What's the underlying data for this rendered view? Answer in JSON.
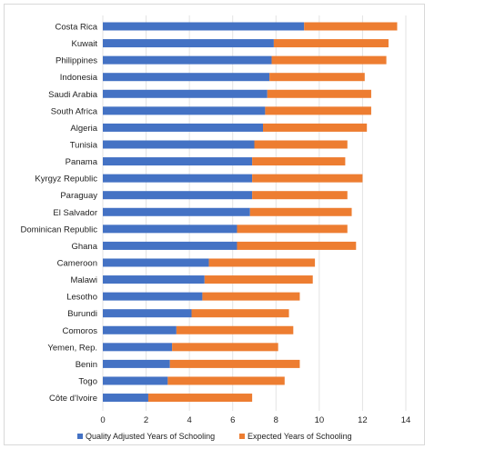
{
  "chart_data": {
    "type": "bar",
    "orientation": "horizontal",
    "stacked": true,
    "title": "",
    "xlabel": "",
    "ylabel": "",
    "xlim": [
      0,
      14
    ],
    "xticks": [
      0,
      2,
      4,
      6,
      8,
      10,
      12,
      14
    ],
    "grid": true,
    "legend_position": "bottom",
    "categories": [
      "Costa Rica",
      "Kuwait",
      "Philippines",
      "Indonesia",
      "Saudi Arabia",
      "South Africa",
      "Algeria",
      "Tunisia",
      "Panama",
      "Kyrgyz Republic",
      "Paraguay",
      "El Salvador",
      "Dominican Republic",
      "Ghana",
      "Cameroon",
      "Malawi",
      "Lesotho",
      "Burundi",
      "Comoros",
      "Yemen, Rep.",
      "Benin",
      "Togo",
      "Côte d'Ivoire"
    ],
    "series": [
      {
        "name": "Quality Adjusted Years of Schooling",
        "color": "#4472c4",
        "values": [
          9.3,
          7.9,
          7.8,
          7.7,
          7.6,
          7.5,
          7.4,
          7.0,
          6.9,
          6.9,
          6.9,
          6.8,
          6.2,
          6.2,
          4.9,
          4.7,
          4.6,
          4.1,
          3.4,
          3.2,
          3.1,
          3.0,
          2.1
        ]
      },
      {
        "name": "Expected Years of Schooling",
        "color": "#ed7d31",
        "values": [
          4.3,
          5.3,
          5.3,
          4.4,
          4.8,
          4.9,
          4.8,
          4.3,
          4.3,
          5.1,
          4.4,
          4.7,
          5.1,
          5.5,
          4.9,
          5.0,
          4.5,
          4.5,
          5.4,
          4.9,
          6.0,
          5.4,
          4.8
        ]
      }
    ]
  }
}
